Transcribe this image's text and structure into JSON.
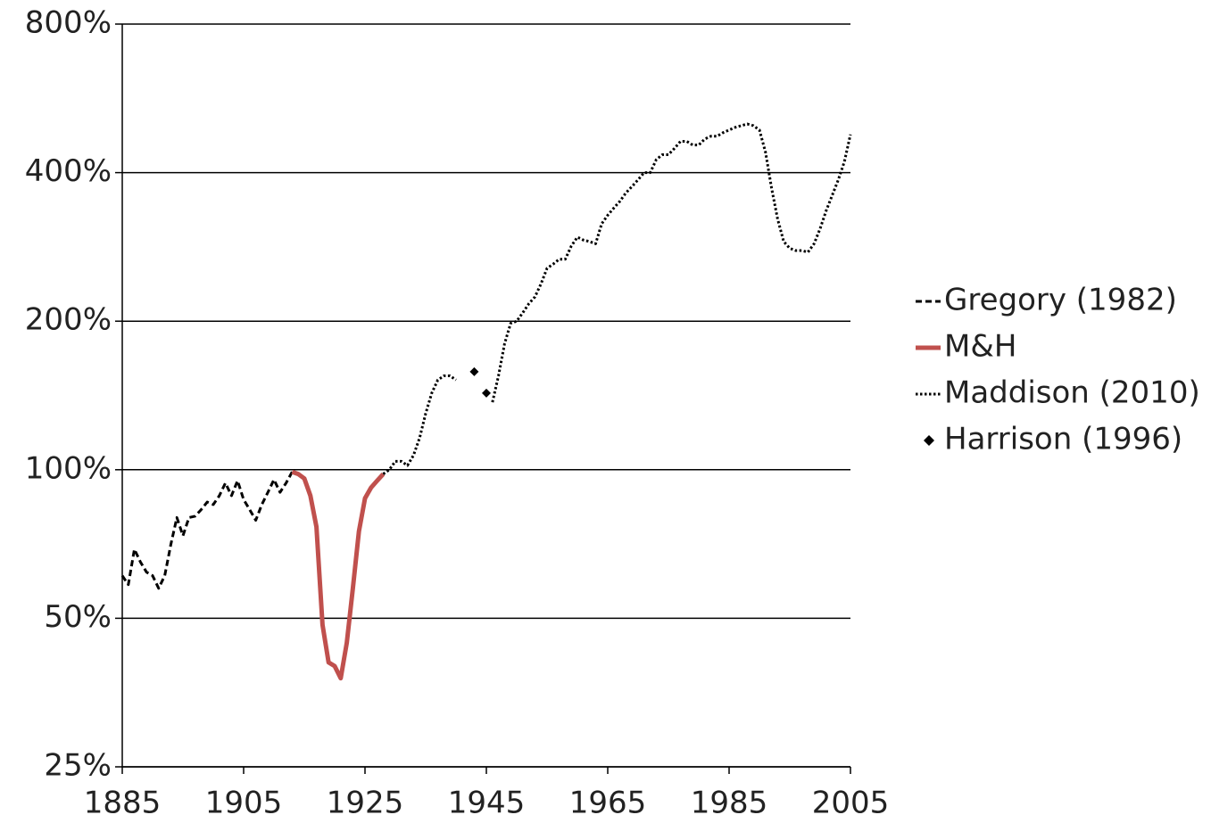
{
  "chart_data": {
    "type": "line",
    "ylog": true,
    "grid": true,
    "legend": "right",
    "xlim": [
      1885,
      2005
    ],
    "xticks": [
      1885,
      1905,
      1925,
      1945,
      1965,
      1985,
      2005
    ],
    "ylim": [
      25,
      800
    ],
    "yticks": [
      {
        "value": 25,
        "label": "25%"
      },
      {
        "value": 50,
        "label": "50%"
      },
      {
        "value": 100,
        "label": "100%"
      },
      {
        "value": 200,
        "label": "200%"
      },
      {
        "value": 400,
        "label": "400%"
      },
      {
        "value": 800,
        "label": "800%"
      }
    ],
    "series": [
      {
        "name": "Gregory (1982)",
        "color": "#000000",
        "style": "dashed",
        "x": [
          1885,
          1886,
          1887,
          1888,
          1889,
          1890,
          1891,
          1892,
          1893,
          1894,
          1895,
          1896,
          1897,
          1898,
          1899,
          1900,
          1901,
          1902,
          1903,
          1904,
          1905,
          1906,
          1907,
          1908,
          1909,
          1910,
          1911,
          1912,
          1913
        ],
        "values": [
          61,
          58.5,
          69,
          65,
          62,
          61,
          57.5,
          61,
          70.5,
          80,
          73.5,
          80,
          80.5,
          83,
          86,
          85,
          88.6,
          94,
          88.6,
          95,
          87,
          83,
          79,
          85,
          90,
          95.5,
          90,
          94,
          99
        ]
      },
      {
        "name": "M&H",
        "color": "#c0504d",
        "style": "solid",
        "x": [
          1913,
          1914,
          1915,
          1916,
          1917,
          1918,
          1919,
          1920,
          1921,
          1922,
          1923,
          1924,
          1925,
          1926,
          1927,
          1928
        ],
        "values": [
          99,
          98,
          96,
          88.6,
          76.6,
          48.5,
          40.7,
          40,
          37.8,
          44.6,
          57.5,
          75,
          87.5,
          92,
          95,
          98
        ]
      },
      {
        "name": "Maddison (2010)",
        "color": "#000000",
        "style": "dotted",
        "x": [
          1928,
          1929,
          1930,
          1931,
          1932,
          1933,
          1934,
          1935,
          1936,
          1937,
          1938,
          1939,
          1940,
          1941,
          1942,
          1943,
          1944,
          1945,
          1946,
          1947,
          1948,
          1949,
          1950,
          1951,
          1952,
          1953,
          1954,
          1955,
          1956,
          1957,
          1958,
          1959,
          1960,
          1961,
          1962,
          1963,
          1964,
          1965,
          1966,
          1967,
          1968,
          1969,
          1970,
          1971,
          1972,
          1973,
          1974,
          1975,
          1976,
          1977,
          1978,
          1979,
          1980,
          1981,
          1982,
          1983,
          1984,
          1985,
          1986,
          1987,
          1988,
          1989,
          1990,
          1991,
          1992,
          1993,
          1994,
          1995,
          1996,
          1997,
          1998,
          1999,
          2000,
          2001,
          2002,
          2003,
          2004,
          2005
        ],
        "values": [
          98,
          100,
          104,
          104,
          102,
          107,
          116,
          130,
          143,
          152,
          155,
          155,
          152,
          null,
          null,
          null,
          null,
          null,
          137,
          155,
          180,
          198,
          200,
          208,
          217,
          224,
          238,
          256,
          261,
          267,
          267,
          284,
          296,
          292,
          290,
          287,
          315,
          328,
          339,
          350,
          364,
          375,
          387,
          400,
          400,
          425,
          435,
          435,
          448,
          463,
          463,
          455,
          455,
          468,
          474,
          474,
          482,
          488,
          494,
          498,
          502,
          498,
          488,
          440,
          372,
          322,
          290,
          281,
          278,
          278,
          276,
          287,
          308,
          335,
          360,
          387,
          421,
          478
        ]
      },
      {
        "name": "Harrison (1996)",
        "color": "#000000",
        "style": "marker",
        "x": [
          1943,
          1945
        ],
        "values": [
          158,
          143
        ]
      }
    ]
  }
}
